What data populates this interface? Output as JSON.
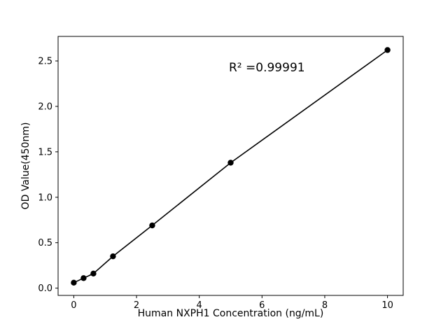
{
  "chart_data": {
    "type": "scatter",
    "x": [
      0,
      0.3125,
      0.625,
      1.25,
      2.5,
      5,
      10
    ],
    "y": [
      0.06,
      0.11,
      0.16,
      0.35,
      0.69,
      1.38,
      2.62
    ],
    "title": "",
    "xlabel": "Human NXPH1 Concentration (ng/mL)",
    "ylabel": "OD Value(450nm)",
    "annotation": {
      "text": "R² =0.99991"
    },
    "xlim": [
      -0.5,
      10.5
    ],
    "ylim": [
      -0.08,
      2.77
    ],
    "xticks": [
      0,
      2,
      4,
      6,
      8,
      10
    ],
    "yticks": [
      0.0,
      0.5,
      1.0,
      1.5,
      2.0,
      2.5
    ],
    "grid": false,
    "legend": "none",
    "line_color": "#000000",
    "marker_color": "#000000",
    "background_color": "#ffffff"
  }
}
